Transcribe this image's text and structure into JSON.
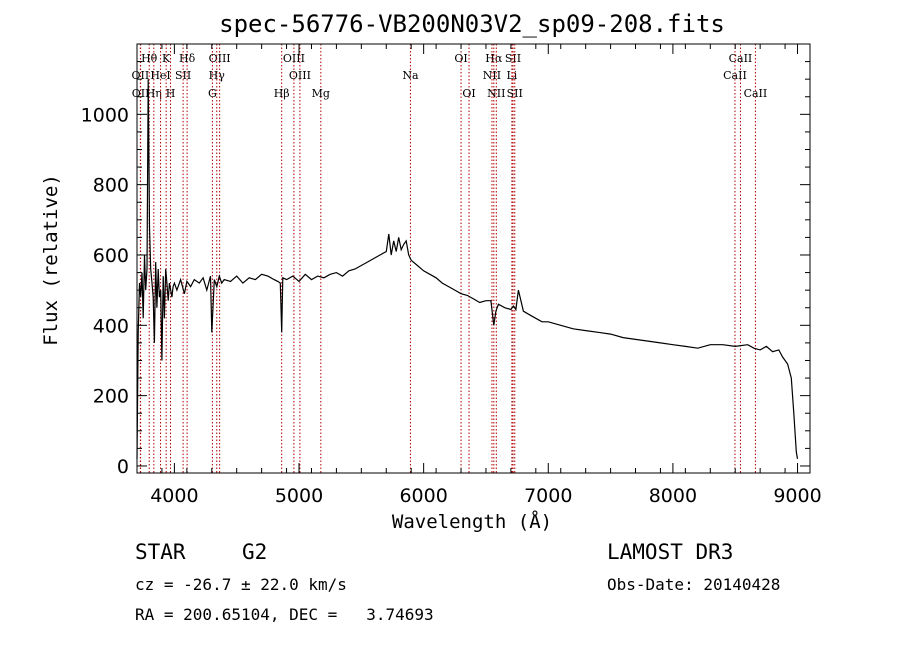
{
  "chart_data": {
    "type": "line",
    "title": "spec-56776-VB200N03V2_sp09-208.fits",
    "xlabel": "Wavelength (Å)",
    "ylabel": "Flux (relative)",
    "xlim": [
      3700,
      9100
    ],
    "ylim": [
      -20,
      1200
    ],
    "xticks": [
      4000,
      5000,
      6000,
      7000,
      8000,
      9000
    ],
    "yticks": [
      0,
      200,
      400,
      600,
      800,
      1000
    ],
    "series": [
      {
        "name": "spectrum",
        "x": [
          3700,
          3710,
          3720,
          3730,
          3740,
          3750,
          3760,
          3770,
          3780,
          3790,
          3800,
          3810,
          3820,
          3830,
          3840,
          3850,
          3860,
          3870,
          3880,
          3890,
          3900,
          3910,
          3920,
          3930,
          3940,
          3950,
          3960,
          3970,
          3980,
          3990,
          4000,
          4020,
          4050,
          4080,
          4100,
          4130,
          4160,
          4200,
          4230,
          4260,
          4290,
          4300,
          4320,
          4340,
          4360,
          4380,
          4400,
          4450,
          4500,
          4550,
          4600,
          4650,
          4700,
          4750,
          4800,
          4830,
          4850,
          4861,
          4870,
          4900,
          4950,
          5000,
          5050,
          5100,
          5150,
          5200,
          5250,
          5300,
          5350,
          5400,
          5450,
          5500,
          5550,
          5600,
          5650,
          5700,
          5720,
          5740,
          5760,
          5780,
          5800,
          5820,
          5840,
          5860,
          5880,
          5900,
          5950,
          6000,
          6050,
          6100,
          6150,
          6200,
          6250,
          6300,
          6350,
          6400,
          6450,
          6500,
          6540,
          6563,
          6580,
          6600,
          6650,
          6700,
          6720,
          6740,
          6760,
          6800,
          6850,
          6900,
          6950,
          7000,
          7100,
          7200,
          7300,
          7400,
          7500,
          7600,
          7700,
          7800,
          7900,
          8000,
          8100,
          8200,
          8300,
          8400,
          8500,
          8600,
          8650,
          8700,
          8750,
          8800,
          8850,
          8880,
          8900,
          8920,
          8950,
          8970,
          8990,
          9000
        ],
        "values": [
          20,
          380,
          520,
          480,
          550,
          420,
          600,
          500,
          560,
          1100,
          680,
          560,
          520,
          480,
          350,
          580,
          450,
          560,
          480,
          500,
          300,
          540,
          420,
          560,
          520,
          470,
          520,
          500,
          480,
          510,
          520,
          500,
          530,
          490,
          525,
          510,
          530,
          520,
          535,
          500,
          540,
          380,
          530,
          510,
          540,
          520,
          530,
          525,
          540,
          520,
          535,
          530,
          545,
          540,
          530,
          525,
          520,
          380,
          535,
          530,
          540,
          525,
          545,
          530,
          540,
          535,
          545,
          550,
          540,
          555,
          560,
          570,
          580,
          590,
          600,
          610,
          660,
          600,
          640,
          610,
          650,
          615,
          630,
          640,
          600,
          585,
          570,
          555,
          545,
          535,
          520,
          510,
          500,
          490,
          485,
          475,
          465,
          470,
          470,
          400,
          440,
          460,
          450,
          445,
          455,
          445,
          500,
          440,
          430,
          420,
          410,
          410,
          400,
          390,
          385,
          380,
          375,
          365,
          360,
          355,
          350,
          345,
          340,
          335,
          345,
          345,
          340,
          345,
          335,
          330,
          340,
          325,
          330,
          310,
          300,
          290,
          250,
          150,
          40,
          20
        ]
      }
    ],
    "line_markers": [
      {
        "name": "Hθ",
        "wl": 3798,
        "row": 1
      },
      {
        "name": "OII",
        "wl": 3727,
        "row": 2
      },
      {
        "name": "OII",
        "wl": 3729,
        "row": 3
      },
      {
        "name": "Hη",
        "wl": 3835,
        "row": 3
      },
      {
        "name": "K",
        "wl": 3934,
        "row": 1
      },
      {
        "name": "HeI",
        "wl": 3889,
        "row": 2
      },
      {
        "name": "H",
        "wl": 3969,
        "row": 3
      },
      {
        "name": "SII",
        "wl": 4070,
        "row": 2
      },
      {
        "name": "Hδ",
        "wl": 4102,
        "row": 1
      },
      {
        "name": "OIII",
        "wl": 4363,
        "row": 1
      },
      {
        "name": "Hγ",
        "wl": 4340,
        "row": 2
      },
      {
        "name": "G",
        "wl": 4305,
        "row": 3
      },
      {
        "name": "OIII",
        "wl": 4959,
        "row": 1
      },
      {
        "name": "OIII",
        "wl": 5007,
        "row": 2
      },
      {
        "name": "Hβ",
        "wl": 4861,
        "row": 3
      },
      {
        "name": "Mg",
        "wl": 5175,
        "row": 3
      },
      {
        "name": "Na",
        "wl": 5894,
        "row": 2
      },
      {
        "name": "OI",
        "wl": 6300,
        "row": 1
      },
      {
        "name": "OI",
        "wl": 6364,
        "row": 3
      },
      {
        "name": "Hα",
        "wl": 6563,
        "row": 1
      },
      {
        "name": "NII",
        "wl": 6548,
        "row": 2
      },
      {
        "name": "NII",
        "wl": 6583,
        "row": 3
      },
      {
        "name": "SII",
        "wl": 6717,
        "row": 1
      },
      {
        "name": "Li",
        "wl": 6708,
        "row": 2
      },
      {
        "name": "SII",
        "wl": 6731,
        "row": 3
      },
      {
        "name": "CaII",
        "wl": 8542,
        "row": 1
      },
      {
        "name": "CaII",
        "wl": 8498,
        "row": 2
      },
      {
        "name": "CaII",
        "wl": 8662,
        "row": 3
      }
    ]
  },
  "info": {
    "object_class": "STAR",
    "subclass": "G2",
    "survey": "LAMOST DR3",
    "cz_line": "cz = -26.7 ± 22.0 km/s",
    "obs_date_line": "Obs-Date: 20140428",
    "coords_line": "RA = 200.65104, DEC =   3.74693"
  }
}
